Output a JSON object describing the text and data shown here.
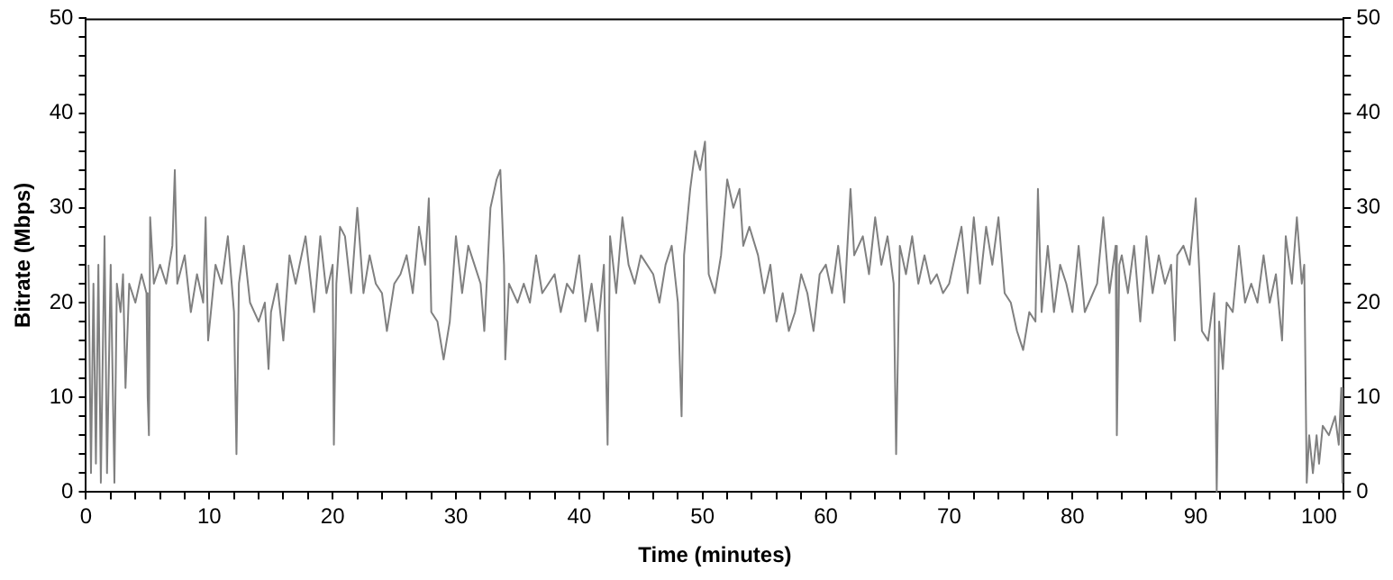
{
  "chart_data": {
    "type": "line",
    "xlabel": "Time (minutes)",
    "ylabel": "Bitrate (Mbps)",
    "grid": false,
    "legend": false,
    "marker": "none",
    "line_style": "solid",
    "xlim": [
      0,
      102
    ],
    "xticks": [
      0,
      {
        "value": 2,
        "label": null
      },
      {
        "value": 4,
        "label": null
      },
      {
        "value": 6,
        "label": null
      },
      {
        "value": 8,
        "label": null
      },
      10,
      {
        "value": 12,
        "label": null
      },
      {
        "value": 14,
        "label": null
      },
      {
        "value": 16,
        "label": null
      },
      {
        "value": 18,
        "label": null
      },
      20,
      {
        "value": 22,
        "label": null
      },
      {
        "value": 24,
        "label": null
      },
      {
        "value": 26,
        "label": null
      },
      {
        "value": 28,
        "label": null
      },
      30,
      {
        "value": 32,
        "label": null
      },
      {
        "value": 34,
        "label": null
      },
      {
        "value": 36,
        "label": null
      },
      {
        "value": 38,
        "label": null
      },
      40,
      {
        "value": 42,
        "label": null
      },
      {
        "value": 44,
        "label": null
      },
      {
        "value": 46,
        "label": null
      },
      {
        "value": 48,
        "label": null
      },
      50,
      {
        "value": 52,
        "label": null
      },
      {
        "value": 54,
        "label": null
      },
      {
        "value": 56,
        "label": null
      },
      {
        "value": 58,
        "label": null
      },
      60,
      {
        "value": 62,
        "label": null
      },
      {
        "value": 64,
        "label": null
      },
      {
        "value": 66,
        "label": null
      },
      {
        "value": 68,
        "label": null
      },
      70,
      {
        "value": 72,
        "label": null
      },
      {
        "value": 74,
        "label": null
      },
      {
        "value": 76,
        "label": null
      },
      {
        "value": 78,
        "label": null
      },
      80,
      {
        "value": 82,
        "label": null
      },
      {
        "value": 84,
        "label": null
      },
      {
        "value": 86,
        "label": null
      },
      {
        "value": 88,
        "label": null
      },
      90,
      {
        "value": 92,
        "label": null
      },
      {
        "value": 94,
        "label": null
      },
      {
        "value": 96,
        "label": null
      },
      {
        "value": 98,
        "label": null
      },
      100,
      {
        "value": 102,
        "label": null
      }
    ],
    "ylim": [
      0,
      50
    ],
    "yticks": [
      0,
      {
        "value": 2,
        "label": null
      },
      {
        "value": 4,
        "label": null
      },
      {
        "value": 6,
        "label": null
      },
      {
        "value": 8,
        "label": null
      },
      10,
      {
        "value": 12,
        "label": null
      },
      {
        "value": 14,
        "label": null
      },
      {
        "value": 16,
        "label": null
      },
      {
        "value": 18,
        "label": null
      },
      20,
      {
        "value": 22,
        "label": null
      },
      {
        "value": 24,
        "label": null
      },
      {
        "value": 26,
        "label": null
      },
      {
        "value": 28,
        "label": null
      },
      30,
      {
        "value": 32,
        "label": null
      },
      {
        "value": 34,
        "label": null
      },
      {
        "value": 36,
        "label": null
      },
      {
        "value": 38,
        "label": null
      },
      40,
      {
        "value": 42,
        "label": null
      },
      {
        "value": 44,
        "label": null
      },
      {
        "value": 46,
        "label": null
      },
      {
        "value": 48,
        "label": null
      },
      50
    ],
    "y2lim": [
      0,
      50
    ],
    "y2ticks": [
      0,
      {
        "value": 2,
        "label": null
      },
      {
        "value": 4,
        "label": null
      },
      {
        "value": 6,
        "label": null
      },
      {
        "value": 8,
        "label": null
      },
      10,
      {
        "value": 12,
        "label": null
      },
      {
        "value": 14,
        "label": null
      },
      {
        "value": 16,
        "label": null
      },
      {
        "value": 18,
        "label": null
      },
      20,
      {
        "value": 22,
        "label": null
      },
      {
        "value": 24,
        "label": null
      },
      {
        "value": 26,
        "label": null
      },
      {
        "value": 28,
        "label": null
      },
      30,
      {
        "value": 32,
        "label": null
      },
      {
        "value": 34,
        "label": null
      },
      {
        "value": 36,
        "label": null
      },
      {
        "value": 38,
        "label": null
      },
      40,
      {
        "value": 42,
        "label": null
      },
      {
        "value": 44,
        "label": null
      },
      {
        "value": 46,
        "label": null
      },
      {
        "value": 48,
        "label": null
      },
      50
    ],
    "series": [
      {
        "color": "#808080",
        "x": [
          0.2,
          0.4,
          0.6,
          0.8,
          1.0,
          1.2,
          1.5,
          1.7,
          2.0,
          2.3,
          2.5,
          2.8,
          3.0,
          3.2,
          3.5,
          4.0,
          4.5,
          4.9,
          5.0,
          5.1,
          5.2,
          5.5,
          6.0,
          6.5,
          7.0,
          7.2,
          7.4,
          8.0,
          8.5,
          9.0,
          9.5,
          9.7,
          9.9,
          10.5,
          11.0,
          11.5,
          12.0,
          12.2,
          12.4,
          12.8,
          13.3,
          14.0,
          14.5,
          14.8,
          15.0,
          15.5,
          16.0,
          16.5,
          17.0,
          17.8,
          18.5,
          19.0,
          19.5,
          20.0,
          20.1,
          20.3,
          20.6,
          21.0,
          21.5,
          22.0,
          22.5,
          23.0,
          23.5,
          24.0,
          24.4,
          25.0,
          25.5,
          26.0,
          26.5,
          27.0,
          27.5,
          27.8,
          28.0,
          28.5,
          29.0,
          29.5,
          30.0,
          30.5,
          31.0,
          31.5,
          32.0,
          32.3,
          32.8,
          33.3,
          33.6,
          33.9,
          34.0,
          34.3,
          35.0,
          35.5,
          36.0,
          36.5,
          37.0,
          38.0,
          38.5,
          39.0,
          39.5,
          40.0,
          40.5,
          41.0,
          41.5,
          42.0,
          42.3,
          42.5,
          43.0,
          43.5,
          44.0,
          44.5,
          45.0,
          46.0,
          46.5,
          47.0,
          47.5,
          48.0,
          48.3,
          48.5,
          49.0,
          49.4,
          49.8,
          50.2,
          50.5,
          51.0,
          51.5,
          52.0,
          52.5,
          53.0,
          53.3,
          53.8,
          54.5,
          55.0,
          55.5,
          56.0,
          56.5,
          57.0,
          57.5,
          58.0,
          58.5,
          59.0,
          59.5,
          60.0,
          60.5,
          61.0,
          61.5,
          62.0,
          62.3,
          63.0,
          63.5,
          64.0,
          64.5,
          65.0,
          65.5,
          65.7,
          66.0,
          66.5,
          67.0,
          67.5,
          68.0,
          68.5,
          69.0,
          69.5,
          70.0,
          71.0,
          71.5,
          72.0,
          72.5,
          73.0,
          73.5,
          74.0,
          74.5,
          75.0,
          75.5,
          76.0,
          76.5,
          77.0,
          77.2,
          77.5,
          78.0,
          78.5,
          79.0,
          79.5,
          80.0,
          80.5,
          81.0,
          82.0,
          82.5,
          83.0,
          83.5,
          83.6,
          83.8,
          84.0,
          84.5,
          85.0,
          85.5,
          86.0,
          86.5,
          87.0,
          87.5,
          88.0,
          88.3,
          88.5,
          89.0,
          89.5,
          90.0,
          90.3,
          90.5,
          91.0,
          91.5,
          91.7,
          91.9,
          92.2,
          92.5,
          93.0,
          93.5,
          94.0,
          94.5,
          95.0,
          95.5,
          96.0,
          96.5,
          97.0,
          97.3,
          97.8,
          98.2,
          98.6,
          98.8,
          99.0,
          99.2,
          99.5,
          99.8,
          100.0,
          100.3,
          100.8,
          101.3,
          101.6,
          101.8,
          101.9
        ],
        "values": [
          24,
          2,
          22,
          3,
          24,
          1,
          27,
          2,
          24,
          1,
          22,
          19,
          23,
          11,
          22,
          20,
          23,
          21,
          10,
          6,
          29,
          22,
          24,
          22,
          26,
          34,
          22,
          25,
          19,
          23,
          20,
          29,
          16,
          24,
          22,
          27,
          19,
          4,
          22,
          26,
          20,
          18,
          20,
          13,
          19,
          22,
          16,
          25,
          22,
          27,
          19,
          27,
          21,
          24,
          5,
          22,
          28,
          27,
          21,
          30,
          21,
          25,
          22,
          21,
          17,
          22,
          23,
          25,
          21,
          28,
          24,
          31,
          19,
          18,
          14,
          18,
          27,
          21,
          26,
          24,
          22,
          17,
          30,
          33,
          34,
          24,
          14,
          22,
          20,
          22,
          20,
          25,
          21,
          23,
          19,
          22,
          21,
          25,
          18,
          22,
          17,
          24,
          5,
          27,
          21,
          29,
          24,
          22,
          25,
          23,
          20,
          24,
          26,
          20,
          8,
          25,
          32,
          36,
          34,
          37,
          23,
          21,
          25,
          33,
          30,
          32,
          26,
          28,
          25,
          21,
          24,
          18,
          21,
          17,
          19,
          23,
          21,
          17,
          23,
          24,
          21,
          26,
          20,
          32,
          25,
          27,
          23,
          29,
          24,
          27,
          22,
          4,
          26,
          23,
          27,
          22,
          25,
          22,
          23,
          21,
          22,
          28,
          21,
          29,
          22,
          28,
          24,
          29,
          21,
          20,
          17,
          15,
          19,
          18,
          32,
          19,
          26,
          19,
          24,
          22,
          19,
          26,
          19,
          22,
          29,
          21,
          26,
          6,
          24,
          25,
          21,
          26,
          18,
          27,
          21,
          25,
          22,
          24,
          16,
          25,
          26,
          24,
          31,
          23,
          17,
          16,
          21,
          0,
          18,
          13,
          20,
          19,
          26,
          20,
          22,
          20,
          25,
          20,
          23,
          16,
          27,
          22,
          29,
          22,
          24,
          1,
          6,
          2,
          6,
          3,
          7,
          6,
          8,
          5,
          11,
          1
        ]
      }
    ]
  }
}
